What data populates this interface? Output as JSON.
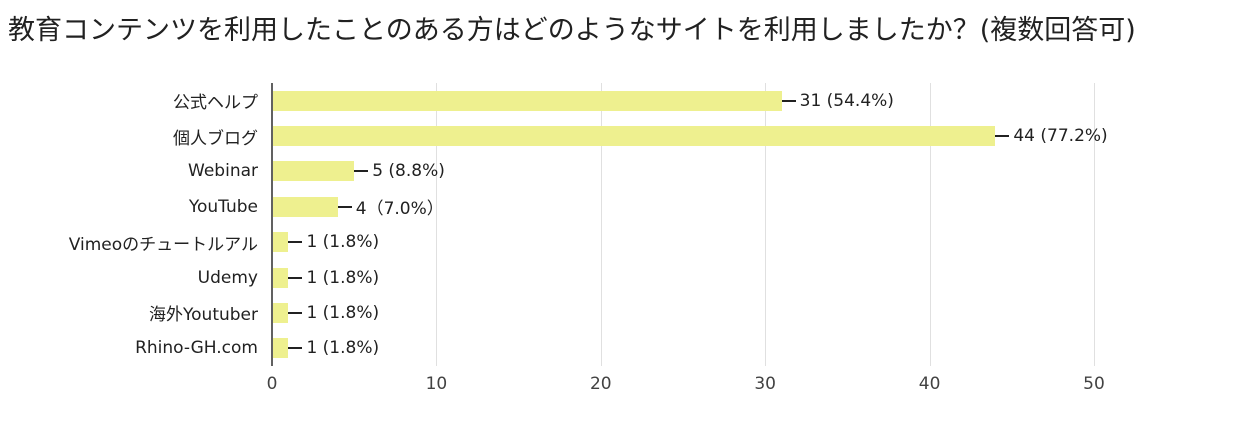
{
  "title": "教育コンテンツを利用したことのある方はどのようなサイトを利用しましたか？(複数回答可)",
  "chart_data": {
    "type": "bar",
    "orientation": "horizontal",
    "title": "教育コンテンツを利用したことのある方はどのようなサイトを利用しましたか？(複数回答可)",
    "categories": [
      "公式ヘルプ",
      "個人ブログ",
      "Webinar",
      "YouTube",
      "Vimeoのチュートルアル",
      "Udemy",
      "海外Youtuber",
      "Rhino-GH.com"
    ],
    "values": [
      31,
      44,
      5,
      4,
      1,
      1,
      1,
      1
    ],
    "value_labels": [
      "31 (54.4%)",
      "44 (77.2%)",
      "5 (8.8%)",
      "4（7.0%）",
      "1 (1.8%)",
      "1 (1.8%)",
      "1 (1.8%)",
      "1 (1.8%)"
    ],
    "xlim": [
      0,
      50
    ],
    "xticks": [
      0,
      10,
      20,
      30,
      40,
      50
    ],
    "xlabel": "",
    "ylabel": "",
    "grid": true,
    "legend": "none",
    "bar_color": "#eef08f",
    "grid_color": "#e0e0e0",
    "axis_color": "#616161",
    "text_color": "#212121"
  }
}
